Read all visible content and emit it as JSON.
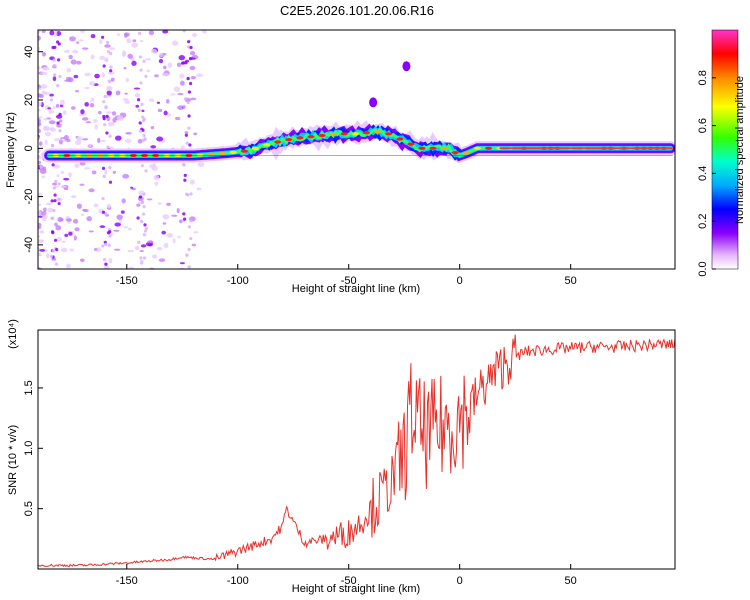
{
  "figure": {
    "title": "C2E5.2026.101.20.06.R16"
  },
  "chart_data": [
    {
      "type": "heatmap",
      "xlabel": "Height of straight line (km)",
      "ylabel": "Frequency (Hz)",
      "xlim": [
        -190,
        97
      ],
      "ylim": [
        -50,
        49
      ],
      "xticks": [
        -150,
        -100,
        -50,
        0,
        50
      ],
      "yticks": [
        -40,
        -20,
        0,
        20,
        40
      ],
      "colorbar": {
        "label": "Normalized spectral amplitude",
        "range": [
          0.0,
          1.0
        ],
        "ticks": [
          0.0,
          0.2,
          0.4,
          0.6,
          0.8
        ],
        "colormap": "rainbow"
      },
      "ridge": {
        "description_points_height_km": [
          -185,
          -160,
          -140,
          -120,
          -105,
          -95,
          -85,
          -75,
          -65,
          -55,
          -45,
          -38,
          -32,
          -25,
          -18,
          -10,
          -5,
          0,
          3,
          8,
          15,
          25,
          50,
          75,
          95
        ],
        "frequency_hz": [
          -3,
          -3,
          -3,
          -3,
          -2,
          -1,
          2,
          4,
          5,
          6,
          6,
          7,
          6,
          3,
          0,
          0,
          0,
          -3,
          -2,
          0,
          0,
          0,
          0,
          0,
          0
        ]
      },
      "isolated_features": [
        {
          "height_km": -24,
          "frequency_hz": 34
        },
        {
          "height_km": -39,
          "frequency_hz": 19
        }
      ]
    },
    {
      "type": "line",
      "xlabel": "Height of straight line (km)",
      "ylabel": "SNR (10 * v/v)",
      "y_multiplier": "(x10⁴)",
      "xlim": [
        -190,
        97
      ],
      "ylim": [
        0,
        1.98
      ],
      "xticks": [
        -150,
        -100,
        -50,
        0,
        50
      ],
      "yticks": [
        0.5,
        1.0,
        1.5
      ],
      "series": [
        {
          "color": "#e8302a",
          "x": [
            -190,
            -170,
            -150,
            -130,
            -125,
            -110,
            -100,
            -95,
            -85,
            -80,
            -78,
            -70,
            -60,
            -50,
            -45,
            -40,
            -35,
            -30,
            -25,
            -22,
            -20,
            -18,
            -15,
            -10,
            -5,
            0,
            5,
            10,
            15,
            20,
            25,
            30,
            40,
            50,
            60,
            70,
            80,
            90,
            97
          ],
          "y": [
            0.03,
            0.03,
            0.05,
            0.08,
            0.1,
            0.08,
            0.15,
            0.18,
            0.25,
            0.35,
            0.5,
            0.22,
            0.25,
            0.3,
            0.38,
            0.5,
            0.6,
            0.75,
            0.95,
            1.3,
            1.25,
            1.15,
            1.1,
            1.15,
            1.2,
            1.25,
            1.35,
            1.5,
            1.6,
            1.7,
            1.76,
            1.8,
            1.82,
            1.83,
            1.84,
            1.84,
            1.85,
            1.86,
            1.86
          ]
        }
      ]
    }
  ]
}
